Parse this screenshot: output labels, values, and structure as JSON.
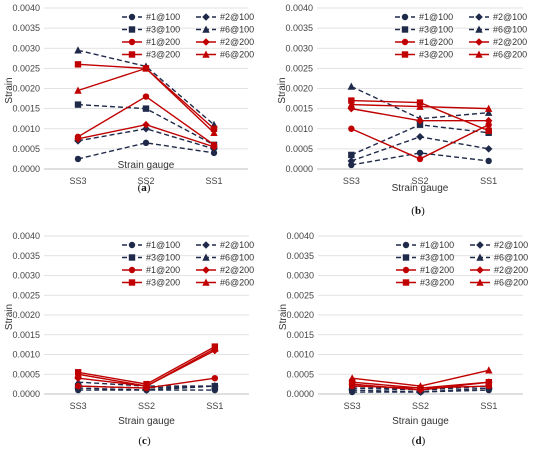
{
  "chart_data": [
    {
      "type": "line",
      "panel_label": "a",
      "categories": [
        "SS3",
        "SS2",
        "SS1"
      ],
      "xlabel": "Strain gauge",
      "ylabel": "Strain",
      "ylim": [
        0,
        0.004
      ],
      "yticks": [
        "0.0000",
        "0.0005",
        "0.0010",
        "0.0015",
        "0.0020",
        "0.0025",
        "0.0030",
        "0.0035",
        "0.0040"
      ],
      "grid": true,
      "legend_position": "top-right",
      "series": [
        {
          "name": "#1@100",
          "color": "#1f2a4a",
          "dash": true,
          "marker": "circle",
          "values": [
            0.00025,
            0.00065,
            0.0004
          ]
        },
        {
          "name": "#2@100",
          "color": "#1f2a4a",
          "dash": true,
          "marker": "diamond",
          "values": [
            0.0007,
            0.001,
            0.0005
          ]
        },
        {
          "name": "#3@100",
          "color": "#1f2a4a",
          "dash": true,
          "marker": "square",
          "values": [
            0.0016,
            0.0015,
            0.0006
          ]
        },
        {
          "name": "#6@100",
          "color": "#1f2a4a",
          "dash": true,
          "marker": "triangle",
          "values": [
            0.00295,
            0.00255,
            0.0011
          ]
        },
        {
          "name": "#1@200",
          "color": "#c00000",
          "dash": false,
          "marker": "circle",
          "values": [
            0.0008,
            0.0018,
            0.0006
          ]
        },
        {
          "name": "#2@200",
          "color": "#c00000",
          "dash": false,
          "marker": "diamond",
          "values": [
            0.00075,
            0.0011,
            0.00055
          ]
        },
        {
          "name": "#3@200",
          "color": "#c00000",
          "dash": false,
          "marker": "square",
          "values": [
            0.0026,
            0.0025,
            0.001
          ]
        },
        {
          "name": "#6@200",
          "color": "#c00000",
          "dash": false,
          "marker": "triangle",
          "values": [
            0.00195,
            0.0025,
            0.0009
          ]
        }
      ]
    },
    {
      "type": "line",
      "panel_label": "b",
      "categories": [
        "SS3",
        "SS2",
        "SS1"
      ],
      "xlabel": "Strain gauge",
      "ylabel": "Strain",
      "ylim": [
        0,
        0.004
      ],
      "yticks": [
        "0.0000",
        "0.0005",
        "0.0010",
        "0.0015",
        "0.0020",
        "0.0025",
        "0.0030",
        "0.0035",
        "0.0040"
      ],
      "grid": true,
      "legend_position": "top-right",
      "series": [
        {
          "name": "#1@100",
          "color": "#1f2a4a",
          "dash": true,
          "marker": "circle",
          "values": [
            0.0001,
            0.0004,
            0.0002
          ]
        },
        {
          "name": "#2@100",
          "color": "#1f2a4a",
          "dash": true,
          "marker": "diamond",
          "values": [
            0.0002,
            0.0008,
            0.0005
          ]
        },
        {
          "name": "#3@100",
          "color": "#1f2a4a",
          "dash": true,
          "marker": "square",
          "values": [
            0.00035,
            0.0011,
            0.0009
          ]
        },
        {
          "name": "#6@100",
          "color": "#1f2a4a",
          "dash": true,
          "marker": "triangle",
          "values": [
            0.00205,
            0.00125,
            0.0014
          ]
        },
        {
          "name": "#1@200",
          "color": "#c00000",
          "dash": false,
          "marker": "circle",
          "values": [
            0.001,
            0.00025,
            0.0011
          ]
        },
        {
          "name": "#2@200",
          "color": "#c00000",
          "dash": false,
          "marker": "diamond",
          "values": [
            0.0015,
            0.0012,
            0.0012
          ]
        },
        {
          "name": "#3@200",
          "color": "#c00000",
          "dash": false,
          "marker": "square",
          "values": [
            0.0017,
            0.00165,
            0.00095
          ]
        },
        {
          "name": "#6@200",
          "color": "#c00000",
          "dash": false,
          "marker": "triangle",
          "values": [
            0.0016,
            0.00155,
            0.0015
          ]
        }
      ]
    },
    {
      "type": "line",
      "panel_label": "c",
      "categories": [
        "SS3",
        "SS2",
        "SS1"
      ],
      "xlabel": "Strain gauge",
      "ylabel": "Strain",
      "ylim": [
        0,
        0.004
      ],
      "yticks": [
        "0.0000",
        "0.0005",
        "0.0010",
        "0.0015",
        "0.0020",
        "0.0025",
        "0.0030",
        "0.0035",
        "0.0040"
      ],
      "grid": true,
      "legend_position": "top-right",
      "series": [
        {
          "name": "#1@100",
          "color": "#1f2a4a",
          "dash": true,
          "marker": "circle",
          "values": [
            0.0001,
            0.0001,
            0.0001
          ]
        },
        {
          "name": "#2@100",
          "color": "#1f2a4a",
          "dash": true,
          "marker": "diamond",
          "values": [
            0.00015,
            0.0001,
            0.0002
          ]
        },
        {
          "name": "#3@100",
          "color": "#1f2a4a",
          "dash": true,
          "marker": "square",
          "values": [
            0.0002,
            0.00015,
            0.0002
          ]
        },
        {
          "name": "#6@100",
          "color": "#1f2a4a",
          "dash": true,
          "marker": "triangle",
          "values": [
            0.0003,
            0.0002,
            0.0002
          ]
        },
        {
          "name": "#1@200",
          "color": "#c00000",
          "dash": false,
          "marker": "circle",
          "values": [
            0.0002,
            0.00015,
            0.0004
          ]
        },
        {
          "name": "#2@200",
          "color": "#c00000",
          "dash": false,
          "marker": "diamond",
          "values": [
            0.0004,
            0.0002,
            0.0011
          ]
        },
        {
          "name": "#3@200",
          "color": "#c00000",
          "dash": false,
          "marker": "square",
          "values": [
            0.00055,
            0.00025,
            0.0012
          ]
        },
        {
          "name": "#6@200",
          "color": "#c00000",
          "dash": false,
          "marker": "triangle",
          "values": [
            0.0005,
            0.0002,
            0.00115
          ]
        }
      ]
    },
    {
      "type": "line",
      "panel_label": "d",
      "categories": [
        "SS3",
        "SS2",
        "SS1"
      ],
      "xlabel": "Strain gauge",
      "ylabel": "Strain",
      "ylim": [
        0,
        0.004
      ],
      "yticks": [
        "0.0000",
        "0.0005",
        "0.0010",
        "0.0015",
        "0.0020",
        "0.0025",
        "0.0030",
        "0.0035",
        "0.0040"
      ],
      "grid": true,
      "legend_position": "top-right",
      "series": [
        {
          "name": "#1@100",
          "color": "#1f2a4a",
          "dash": true,
          "marker": "circle",
          "values": [
            5e-05,
            5e-05,
            0.0001
          ]
        },
        {
          "name": "#2@100",
          "color": "#1f2a4a",
          "dash": true,
          "marker": "diamond",
          "values": [
            0.0001,
            5e-05,
            0.00015
          ]
        },
        {
          "name": "#3@100",
          "color": "#1f2a4a",
          "dash": true,
          "marker": "square",
          "values": [
            0.00015,
            0.0001,
            0.0002
          ]
        },
        {
          "name": "#6@100",
          "color": "#1f2a4a",
          "dash": true,
          "marker": "triangle",
          "values": [
            0.0002,
            0.0001,
            0.0002
          ]
        },
        {
          "name": "#1@200",
          "color": "#c00000",
          "dash": false,
          "marker": "circle",
          "values": [
            0.0002,
            0.00015,
            0.0002
          ]
        },
        {
          "name": "#2@200",
          "color": "#c00000",
          "dash": false,
          "marker": "diamond",
          "values": [
            0.00025,
            0.0001,
            0.0003
          ]
        },
        {
          "name": "#3@200",
          "color": "#c00000",
          "dash": false,
          "marker": "square",
          "values": [
            0.0003,
            0.00015,
            0.0003
          ]
        },
        {
          "name": "#6@200",
          "color": "#c00000",
          "dash": false,
          "marker": "triangle",
          "values": [
            0.0004,
            0.0002,
            0.0006
          ]
        }
      ]
    }
  ]
}
